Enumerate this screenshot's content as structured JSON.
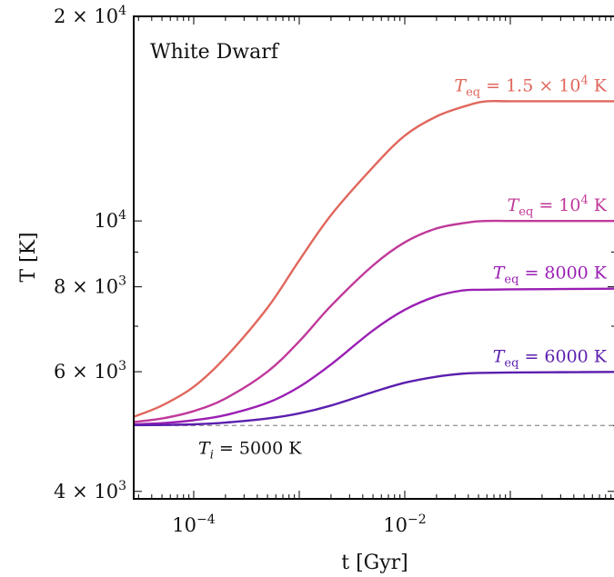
{
  "chart_data": {
    "type": "line",
    "title": "White Dwarf",
    "xlabel": "t [Gyr]",
    "ylabel": "T [K]",
    "x_scale": "log",
    "y_scale": "log",
    "xlim": [
      2.7e-05,
      1.0
    ],
    "ylim": [
      3900,
      20000
    ],
    "x_ticks": [
      {
        "value": 0.0001,
        "base": "10",
        "exp": "−4"
      },
      {
        "value": 0.01,
        "base": "10",
        "exp": "−2"
      }
    ],
    "y_ticks": [
      {
        "value": 4000,
        "mant": "4 × 10",
        "exp": "3"
      },
      {
        "value": 6000,
        "mant": "6 × 10",
        "exp": "3"
      },
      {
        "value": 8000,
        "mant": "8 × 10",
        "exp": "3"
      },
      {
        "value": 10000,
        "mant": "10",
        "exp": "4"
      },
      {
        "value": 20000,
        "mant": "2 × 10",
        "exp": "4"
      }
    ],
    "reference_line": {
      "value": 5000,
      "label_var": "T",
      "label_sub": "i",
      "label_rest": " = 5000 K"
    },
    "series": [
      {
        "label_var": "T",
        "label_sub": "eq",
        "label_rest": " = 1.5 × 10",
        "label_sup": "4",
        "label_tail": " K",
        "color": "#e0675d",
        "x": [
          2.7e-05,
          5e-05,
          0.0001,
          0.0002,
          0.0005,
          0.001,
          0.002,
          0.005,
          0.01,
          0.02,
          0.04,
          0.06,
          0.1,
          0.3,
          1.0
        ],
        "y": [
          5150,
          5350,
          5700,
          6300,
          7450,
          8750,
          10200,
          12000,
          13350,
          14250,
          14800,
          15000,
          15000,
          15000,
          15000
        ]
      },
      {
        "label_var": "T",
        "label_sub": "eq",
        "label_rest": " = 10",
        "label_sup": "4",
        "label_tail": " K",
        "color": "#c0399a",
        "x": [
          2.7e-05,
          5e-05,
          0.0001,
          0.0002,
          0.0005,
          0.001,
          0.002,
          0.005,
          0.01,
          0.02,
          0.04,
          0.06,
          0.1,
          0.3,
          1.0
        ],
        "y": [
          5060,
          5120,
          5250,
          5480,
          6000,
          6650,
          7500,
          8600,
          9300,
          9750,
          9950,
          10000,
          10000,
          10000,
          10000
        ]
      },
      {
        "label_var": "T",
        "label_sub": "eq",
        "label_rest": " = 8000 K",
        "label_sup": "",
        "label_tail": "",
        "color": "#9a1fb3",
        "x": [
          2.7e-05,
          5e-05,
          0.0001,
          0.0002,
          0.0005,
          0.001,
          0.002,
          0.005,
          0.01,
          0.02,
          0.035,
          0.05,
          0.1,
          0.3,
          1.0
        ],
        "y": [
          5020,
          5040,
          5090,
          5180,
          5400,
          5700,
          6150,
          6900,
          7400,
          7750,
          7900,
          7920,
          7930,
          7940,
          7950
        ]
      },
      {
        "label_var": "T",
        "label_sub": "eq",
        "label_rest": " = 6000 K",
        "label_sup": "",
        "label_tail": "",
        "color": "#5b1fae",
        "x": [
          2.7e-05,
          5e-05,
          0.0001,
          0.0002,
          0.0005,
          0.001,
          0.002,
          0.005,
          0.01,
          0.02,
          0.035,
          0.05,
          0.1,
          0.3,
          1.0
        ],
        "y": [
          5005,
          5010,
          5020,
          5050,
          5120,
          5210,
          5350,
          5600,
          5780,
          5900,
          5960,
          5975,
          5985,
          5990,
          5995
        ]
      }
    ],
    "grid": false,
    "legend": "none (labels placed above curves)"
  }
}
